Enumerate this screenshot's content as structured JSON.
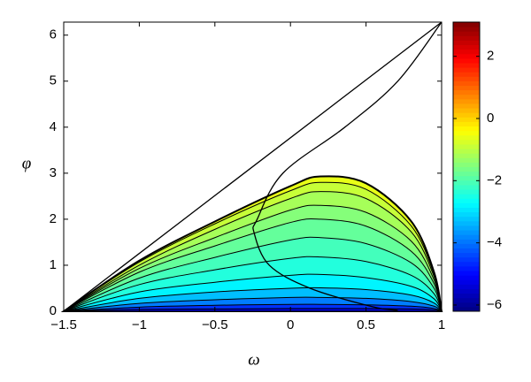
{
  "chart_data": {
    "type": "contour",
    "xlabel": "ω",
    "ylabel": "φ",
    "x": [
      -1.5,
      -1,
      -0.5,
      0,
      0.2,
      0.5,
      0.8,
      0.95,
      1
    ],
    "series": [
      {
        "level": -0.6,
        "values": [
          0,
          1.1,
          1.95,
          2.72,
          2.93,
          2.78,
          1.95,
          0.85,
          0
        ]
      },
      {
        "level": -0.9,
        "values": [
          0,
          1.07,
          1.9,
          2.62,
          2.8,
          2.65,
          1.85,
          0.8,
          0
        ]
      },
      {
        "level": -1.2,
        "values": [
          0,
          1.0,
          1.78,
          2.45,
          2.6,
          2.45,
          1.72,
          0.75,
          0
        ]
      },
      {
        "level": -1.5,
        "values": [
          0,
          0.93,
          1.6,
          2.2,
          2.3,
          2.15,
          1.52,
          0.68,
          0
        ]
      },
      {
        "level": -1.8,
        "values": [
          0,
          0.85,
          1.42,
          1.93,
          2.0,
          1.85,
          1.3,
          0.6,
          0
        ]
      },
      {
        "level": -2.1,
        "values": [
          0,
          0.72,
          1.17,
          1.55,
          1.6,
          1.47,
          1.05,
          0.5,
          0
        ]
      },
      {
        "level": -2.4,
        "values": [
          0,
          0.58,
          0.9,
          1.15,
          1.18,
          1.08,
          0.78,
          0.38,
          0
        ]
      },
      {
        "level": -2.8,
        "values": [
          0,
          0.42,
          0.63,
          0.78,
          0.8,
          0.73,
          0.54,
          0.27,
          0
        ]
      },
      {
        "level": -3.3,
        "values": [
          0,
          0.28,
          0.42,
          0.5,
          0.51,
          0.47,
          0.35,
          0.18,
          0
        ]
      },
      {
        "level": -3.9,
        "values": [
          0,
          0.17,
          0.25,
          0.3,
          0.3,
          0.28,
          0.21,
          0.11,
          0
        ]
      },
      {
        "level": -4.6,
        "values": [
          0,
          0.09,
          0.13,
          0.15,
          0.15,
          0.14,
          0.11,
          0.06,
          0
        ]
      },
      {
        "level": -5.4,
        "values": [
          0,
          0.04,
          0.05,
          0.06,
          0.06,
          0.06,
          0.05,
          0.03,
          0
        ]
      }
    ],
    "lines": [
      {
        "x": [
          -1.5,
          1
        ],
        "y": [
          0,
          6.283
        ]
      },
      {
        "x": [
          0.71,
          0.54,
          0.13,
          -0.14,
          -0.24,
          -0.22,
          -0.05,
          0.36,
          0.71,
          1
        ],
        "y": [
          0.02,
          0.1,
          0.5,
          1,
          1.7,
          2,
          3,
          4,
          5,
          6.283
        ]
      }
    ],
    "line_color": "#000000",
    "colormap": "jet",
    "xlim": [
      -1.5,
      1
    ],
    "ylim": [
      0,
      6.283
    ],
    "clim": [
      -6.2,
      3.1
    ],
    "xticks": [
      {
        "value": -1.5,
        "label": "−1.5"
      },
      {
        "value": -1,
        "label": "−1"
      },
      {
        "value": -0.5,
        "label": "−0.5"
      },
      0,
      0.5,
      1
    ],
    "yticks": [
      0,
      1,
      2,
      3,
      4,
      5,
      6
    ],
    "cticks": [
      2,
      0,
      {
        "value": -2,
        "label": "−2"
      },
      {
        "value": -4,
        "label": "−4"
      },
      {
        "value": -6,
        "label": "−6"
      }
    ]
  }
}
